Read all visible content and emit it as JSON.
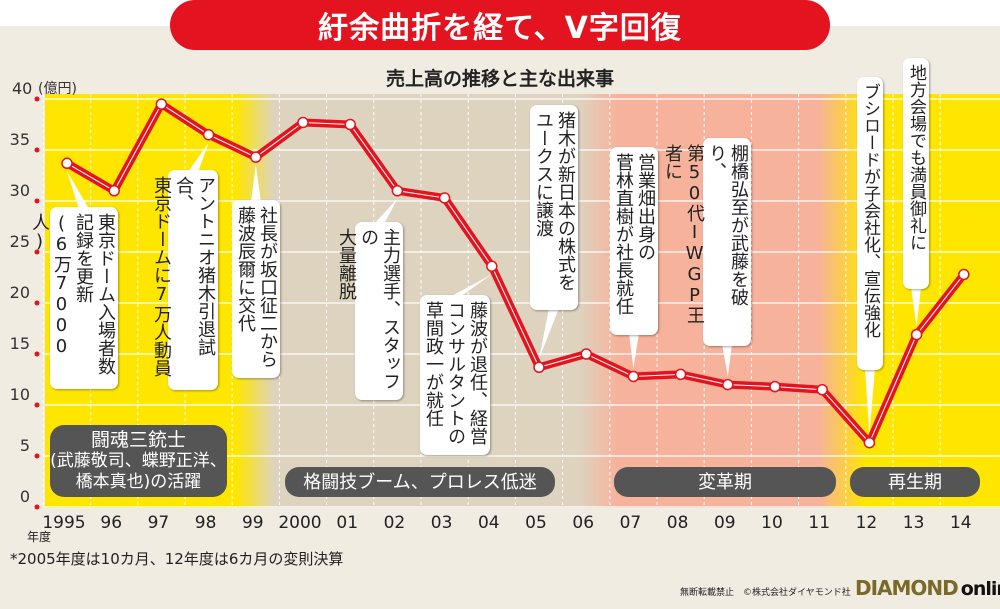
{
  "header": {
    "title": "紆余曲折を経て、V字回復",
    "subtitle": "売上高の推移と主な出来事"
  },
  "colors": {
    "line": "#e3141f",
    "yellow": "#ffe600",
    "tan": "#ddd3bf",
    "salmon": "#f7b29b",
    "banner": "#e3141f",
    "pill": "#555555"
  },
  "chart_data": {
    "type": "line",
    "title": "売上高の推移と主な出来事",
    "ylabel": "(億円)",
    "xlabel": "年度",
    "ylim": [
      0,
      40
    ],
    "yticks": [
      "0",
      "5",
      "10",
      "15",
      "20",
      "25",
      "30",
      "35",
      "40"
    ],
    "categories": [
      "1995",
      "96",
      "97",
      "98",
      "99",
      "2000",
      "01",
      "02",
      "03",
      "04",
      "05",
      "06",
      "07",
      "08",
      "09",
      "10",
      "11",
      "12",
      "13",
      "14"
    ],
    "series": [
      {
        "name": "売上高",
        "values": [
          33.7,
          31,
          39.5,
          36.5,
          34.3,
          37.7,
          37.5,
          31,
          30.3,
          23.6,
          13.7,
          15,
          12.8,
          13,
          12,
          11.8,
          11.5,
          6.3,
          16.9,
          22.8
        ]
      }
    ],
    "grid": true
  },
  "events": [
    {
      "year": "1995",
      "lines": [
        "東京ドーム入場者数",
        "記録を更新",
        "(6万7000人)"
      ]
    },
    {
      "year": "98",
      "lines": [
        "アントニオ猪木引退試合、",
        "東京ドームに7万人動員"
      ]
    },
    {
      "year": "99",
      "lines": [
        "社長が坂口征二から",
        "藤波辰爾に交代"
      ]
    },
    {
      "year": "02",
      "lines": [
        "主力選手、スタッフの",
        "大量離脱"
      ]
    },
    {
      "year": "04",
      "lines": [
        "藤波が退任、経営",
        "コンサルタントの",
        "草間政一が就任"
      ]
    },
    {
      "year": "05",
      "lines": [
        "猪木が新日本の株式を",
        "ユークスに譲渡"
      ]
    },
    {
      "year": "07",
      "lines": [
        "営業畑出身の",
        "菅林直樹が社長就任"
      ]
    },
    {
      "year": "09",
      "lines": [
        "棚橋弘至が武藤を破り、",
        "第50代IWGP王者に"
      ]
    },
    {
      "year": "12",
      "lines": [
        "ブシロードが子会社化、宣伝強化"
      ]
    },
    {
      "year": "13",
      "lines": [
        "地方会場でも満員御礼に"
      ]
    }
  ],
  "periods": [
    {
      "lines": [
        "闘魂三銃士",
        "(武藤敬司、蝶野正洋、",
        "橋本真也)の活躍"
      ]
    },
    {
      "lines": [
        "格闘技ブーム、プロレス低迷"
      ]
    },
    {
      "lines": [
        "変革期"
      ]
    },
    {
      "lines": [
        "再生期"
      ]
    }
  ],
  "footer": {
    "nendo": "年度",
    "note": "*2005年度は10カ月、12年度は6カ月の変則決算",
    "credit": "無断転載禁止　©株式会社ダイヤモンド社",
    "logo_a": "DIAMOND",
    "logo_b": "online"
  }
}
